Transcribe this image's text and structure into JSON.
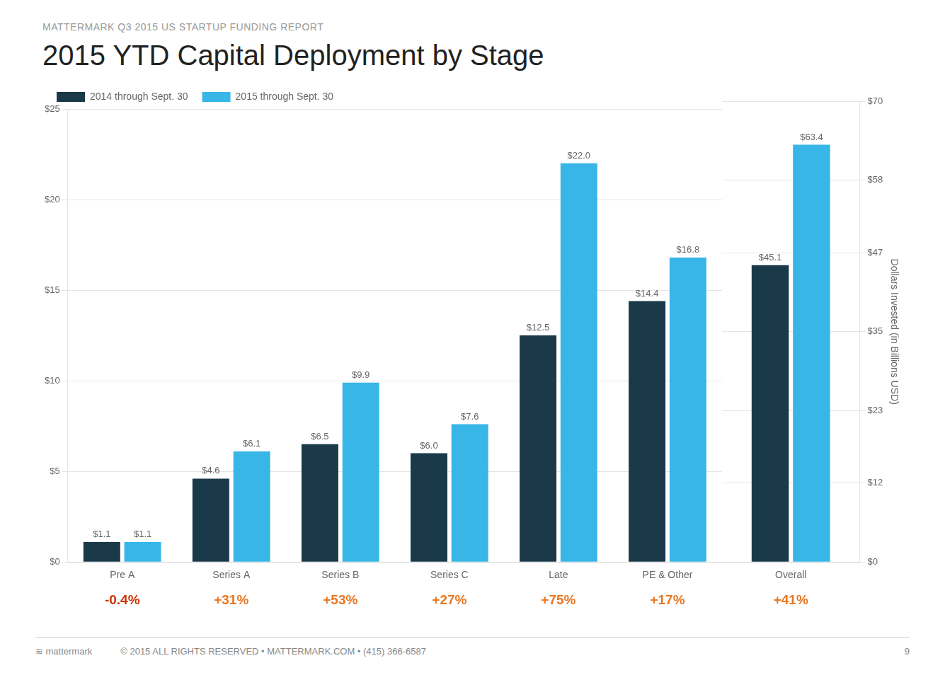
{
  "chart_data": [
    {
      "type": "bar",
      "subtitle": "MATTERMARK Q3 2015 US STARTUP FUNDING REPORT",
      "title": "2015 YTD Capital Deployment by Stage",
      "categories": [
        "Pre A",
        "Series A",
        "Series B",
        "Series C",
        "Late",
        "PE & Other"
      ],
      "series": [
        {
          "name": "2014 through Sept. 30",
          "color": "#1a3a4a",
          "values": [
            1.1,
            4.6,
            6.5,
            6.0,
            12.5,
            14.4
          ],
          "value_labels": [
            "$1.1",
            "$4.6",
            "$6.5",
            "$6.0",
            "$12.5",
            "$14.4"
          ]
        },
        {
          "name": "2015 through Sept. 30",
          "color": "#38b6e8",
          "values": [
            1.1,
            6.1,
            9.9,
            7.6,
            22.0,
            16.8
          ],
          "value_labels": [
            "$1.1",
            "$6.1",
            "$9.9",
            "$7.6",
            "$22.0",
            "$16.8"
          ]
        }
      ],
      "ylim": [
        0,
        25
      ],
      "yticks": [
        {
          "value": 0,
          "label": "$0"
        },
        {
          "value": 5,
          "label": "$5"
        },
        {
          "value": 10,
          "label": "$10"
        },
        {
          "value": 15,
          "label": "$15"
        },
        {
          "value": 20,
          "label": "$20"
        },
        {
          "value": 25,
          "label": "$25"
        }
      ],
      "grid": true,
      "legend": "top",
      "data_labels": true,
      "annotations": [
        {
          "text": "-0.4%",
          "color": "#cc3300"
        },
        {
          "text": "+31%",
          "color": "#e87722"
        },
        {
          "text": "+53%",
          "color": "#e87722"
        },
        {
          "text": "+27%",
          "color": "#e87722"
        },
        {
          "text": "+75%",
          "color": "#e87722"
        },
        {
          "text": "+17%",
          "color": "#e87722"
        }
      ],
      "footer": [
        "≋  mattermark",
        "© 2015 ALL RIGHTS RESERVED  •  MATTERMARK.COM  •  (415) 366-6587",
        "9"
      ]
    },
    {
      "type": "bar",
      "categories": [
        "Overall"
      ],
      "series": [
        {
          "name": "2014 through Sept. 30",
          "color": "#1a3a4a",
          "values": [
            45.1
          ],
          "value_labels": [
            "$45.1"
          ]
        },
        {
          "name": "2015 through Sept. 30",
          "color": "#38b6e8",
          "values": [
            63.4
          ],
          "value_labels": [
            "$63.4"
          ]
        }
      ],
      "ylabel": "Dollars Invested (in Billions USD)",
      "ylim": [
        0,
        70
      ],
      "yticks": [
        {
          "value": 0,
          "label": "$0"
        },
        {
          "value": 12,
          "label": "$12"
        },
        {
          "value": 23,
          "label": "$23"
        },
        {
          "value": 35,
          "label": "$35"
        },
        {
          "value": 47,
          "label": "$47"
        },
        {
          "value": 58,
          "label": "$58"
        },
        {
          "value": 70,
          "label": "$70"
        }
      ],
      "grid": true,
      "data_labels": true,
      "annotations": [
        {
          "text": "+41%",
          "color": "#e87722"
        }
      ]
    }
  ]
}
